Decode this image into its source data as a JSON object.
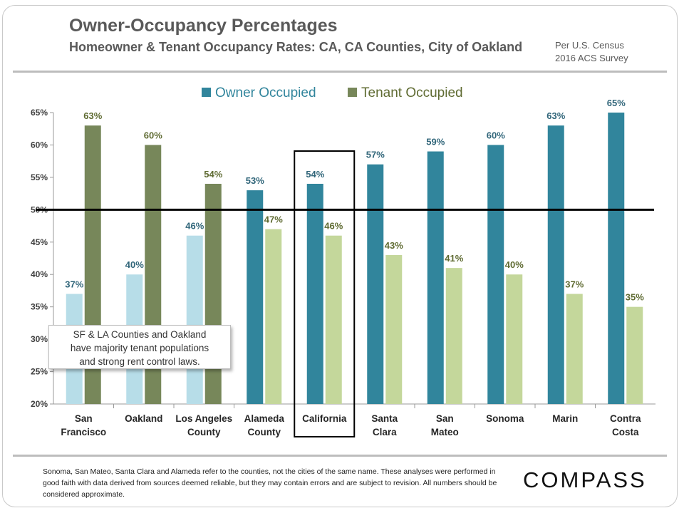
{
  "header": {
    "title": "Owner-Occupancy Percentages",
    "subtitle": "Homeowner & Tenant Occupancy Rates: CA, CA Counties, City of Oakland",
    "source_line1": "Per U.S. Census",
    "source_line2": "2016 ACS Survey"
  },
  "callout": {
    "line1": "SF & LA Counties and Oakland",
    "line2": "have majority tenant populations",
    "line3": "and strong rent control laws."
  },
  "footer": {
    "note": "Sonoma, San Mateo, Santa Clara and Alameda refer to the counties, not the cities of the same name. These analyses were performed in good faith with data derived from sources deemed reliable, but they may contain errors and are subject to revision. All numbers should be considered approximate.",
    "logo": "COMPASS"
  },
  "chart_data": {
    "type": "bar",
    "categories": [
      [
        "San",
        "Francisco"
      ],
      [
        "Oakland"
      ],
      [
        "Los Angeles",
        "County"
      ],
      [
        "Alameda",
        "County"
      ],
      [
        "California"
      ],
      [
        "Santa",
        "Clara"
      ],
      [
        "San",
        "Mateo"
      ],
      [
        "Sonoma"
      ],
      [
        "Marin"
      ],
      [
        "Contra",
        "Costa"
      ]
    ],
    "series": [
      {
        "name": "Owner Occupied",
        "values": [
          37,
          40,
          46,
          53,
          54,
          57,
          59,
          60,
          63,
          65
        ]
      },
      {
        "name": "Tenant Occupied",
        "values": [
          63,
          60,
          54,
          47,
          46,
          43,
          41,
          40,
          37,
          35
        ]
      }
    ],
    "value_suffix": "%",
    "ylim": [
      20,
      65
    ],
    "yticks": [
      20,
      25,
      30,
      35,
      40,
      45,
      50,
      55,
      60,
      65
    ],
    "reference_line": 50,
    "highlighted_category": "California",
    "legend_position": "top",
    "colors": {
      "owner_light": "#b7dde8",
      "owner_dark": "#31859c",
      "tenant_dark": "#77875a",
      "tenant_light": "#c4d79b",
      "owner_label": "#31667a",
      "tenant_label": "#5f6b32",
      "legend_owner": "#31859c",
      "legend_tenant": "#77875a"
    },
    "light_owner_categories": 3
  }
}
